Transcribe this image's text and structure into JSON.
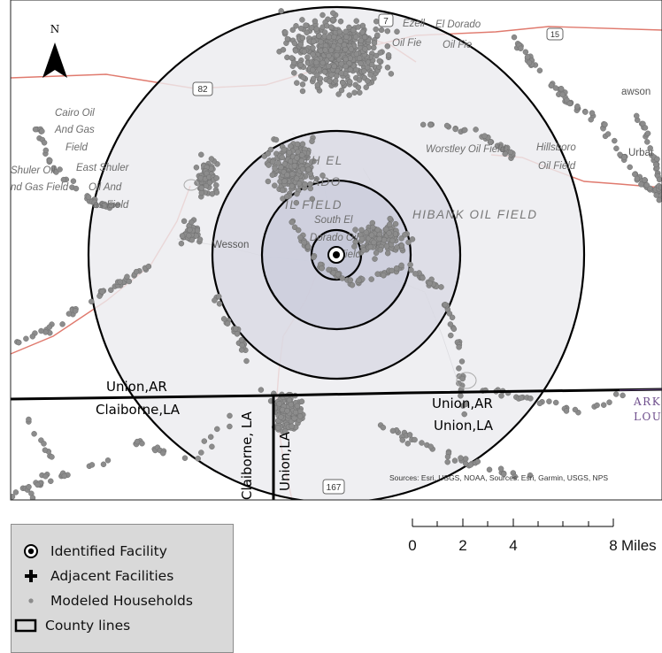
{
  "north_arrow": {
    "label": "N"
  },
  "county_labels": {
    "union_ar_left": "Union,AR",
    "claiborne_la_left": "Claiborne,LA",
    "union_ar_right": "Union,AR",
    "union_la_right": "Union,LA",
    "claiborne_la_vertical": "Claiborne, LA",
    "union_la_vertical": "Union,LA"
  },
  "state_labels": {
    "arkansas": "ARK",
    "louisiana": "LOU"
  },
  "place_labels": {
    "ezell": "Ezell",
    "el_dorado": "El Dorado",
    "oil_field_1": "Oil Fie",
    "oil_field_2": "Oil Fie",
    "cairo_1": "Cairo Oil",
    "cairo_2": "And Gas",
    "cairo_3": "Field",
    "shuler_oil": "Shuler Oil",
    "east_shuler": "East Shuler",
    "and_gas_field": "nd Gas Field",
    "oil_and": "Oil And",
    "gas_field": "as Field",
    "north_el": "TH EL",
    "rado": "ADO",
    "il_field": "IL FIELD",
    "south_el": "South El",
    "dorado_oil": "Dorado Oil",
    "field_small": "Field",
    "hibank": "HIBANK OIL FIELD",
    "worstley": "Worstley Oil Field",
    "hillsboro_1": "Hillsboro",
    "hillsboro_2": "Oil Field",
    "lawson": "awson",
    "urbana": "Urbar",
    "wesson": "Wesson"
  },
  "highway_shields": {
    "hwy82": "82",
    "hwy167": "167",
    "hwy7": "7",
    "hwy15": "15"
  },
  "credits": "Sources: Esri, USGS, NOAA, Sources: Esri, Garmin, USGS, NPS",
  "scalebar": {
    "ticks": [
      "0",
      "2",
      "4",
      "8"
    ],
    "unit": "Miles"
  },
  "legend": {
    "identified_facility": "Identified Facility",
    "adjacent_facilities": "Adjacent Facilities",
    "modeled_households": "Modeled Households",
    "county_lines": "County lines"
  },
  "colors": {
    "ring_fill_outer": "#ebebef",
    "ring_fill_mid": "#d8d8e3",
    "ring_fill_inner": "#c9cbdb",
    "household": "#8c8c8c",
    "road": "#e07a6e",
    "state_line": "#6e4e8c",
    "legend_bg": "#d9d9d9"
  }
}
